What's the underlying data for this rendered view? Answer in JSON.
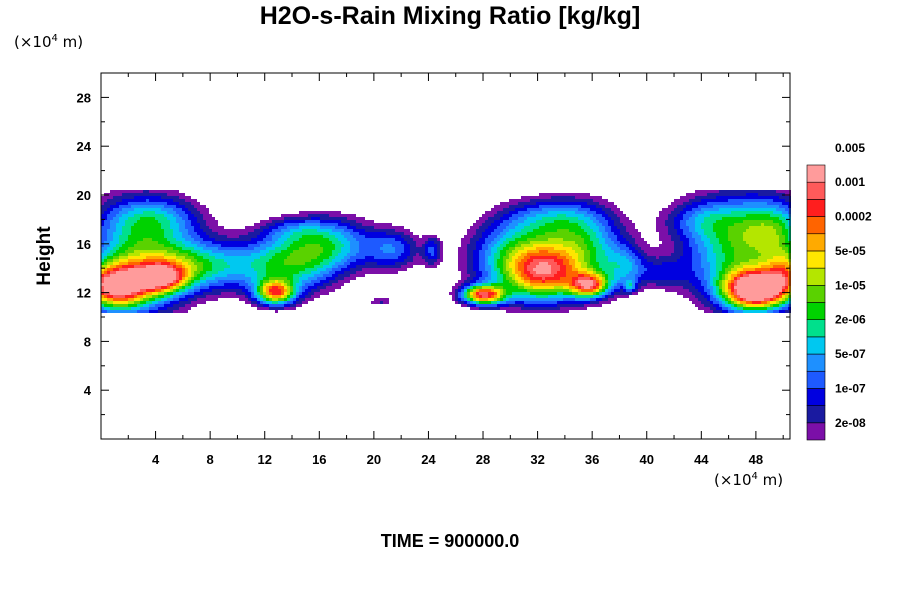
{
  "chart_data": {
    "type": "heatmap",
    "title": "H2O-s-Rain Mixing Ratio [kg/kg]",
    "ylabel": "Height",
    "xlabel": "",
    "x_unit_prefix": "(×10",
    "x_unit_exp": "4",
    "x_unit_suffix": " m)",
    "y_unit_prefix": "(×10",
    "y_unit_exp": "4",
    "y_unit_suffix": " m)",
    "xlim": [
      0,
      50.5
    ],
    "ylim": [
      0,
      30
    ],
    "x_ticks": [
      4,
      8,
      12,
      16,
      20,
      24,
      28,
      32,
      36,
      40,
      44,
      48
    ],
    "y_ticks": [
      4,
      8,
      12,
      16,
      20,
      24,
      28
    ],
    "footer": "TIME = 900000.0",
    "colorbar": {
      "colors": [
        "#7b0fa8",
        "#1a1aa0",
        "#0000e0",
        "#1e5aff",
        "#1e90ff",
        "#00c8f0",
        "#00e08c",
        "#00d200",
        "#5ad200",
        "#b4e600",
        "#ffe600",
        "#ffaa00",
        "#ff6400",
        "#ff1e1e",
        "#ff5a5a",
        "#ff9b9b"
      ],
      "labels": [
        "2e-08",
        "1e-07",
        "5e-07",
        "2e-06",
        "1e-05",
        "5e-05",
        "0.0002",
        "0.001",
        "0.005"
      ]
    },
    "field": {
      "blobs": [
        {
          "x": 3.0,
          "y": 15.0,
          "rx": 4.0,
          "ry": 4.6,
          "a": 1.0
        },
        {
          "x": 7.5,
          "y": 14.2,
          "rx": 3.8,
          "ry": 2.0,
          "a": 0.7
        },
        {
          "x": 1.0,
          "y": 12.5,
          "rx": 2.5,
          "ry": 1.8,
          "a": 1.55
        },
        {
          "x": 4.5,
          "y": 13.2,
          "rx": 1.8,
          "ry": 1.2,
          "a": 1.05
        },
        {
          "x": 4.0,
          "y": 18.2,
          "rx": 3.6,
          "ry": 1.6,
          "a": 0.35
        },
        {
          "x": 13.5,
          "y": 14.2,
          "rx": 3.6,
          "ry": 2.6,
          "a": 0.85
        },
        {
          "x": 12.8,
          "y": 12.0,
          "rx": 1.4,
          "ry": 1.0,
          "a": 1.25
        },
        {
          "x": 16.8,
          "y": 16.0,
          "rx": 3.3,
          "ry": 2.3,
          "a": 0.75
        },
        {
          "x": 21.5,
          "y": 15.5,
          "rx": 2.0,
          "ry": 1.8,
          "a": 0.55
        },
        {
          "x": 14.0,
          "y": 17.2,
          "rx": 2.5,
          "ry": 1.0,
          "a": 0.25
        },
        {
          "x": 24.3,
          "y": 15.4,
          "rx": 0.7,
          "ry": 1.3,
          "a": 0.45
        },
        {
          "x": 20.5,
          "y": 11.3,
          "rx": 0.9,
          "ry": 0.4,
          "a": 0.35
        },
        {
          "x": 30.5,
          "y": 14.8,
          "rx": 3.6,
          "ry": 3.2,
          "a": 0.95
        },
        {
          "x": 28.0,
          "y": 11.8,
          "rx": 1.6,
          "ry": 0.8,
          "a": 1.5
        },
        {
          "x": 32.5,
          "y": 13.5,
          "rx": 2.6,
          "ry": 2.2,
          "a": 1.0
        },
        {
          "x": 35.5,
          "y": 15.5,
          "rx": 3.0,
          "ry": 3.4,
          "a": 0.85
        },
        {
          "x": 35.8,
          "y": 12.6,
          "rx": 1.4,
          "ry": 1.0,
          "a": 1.25
        },
        {
          "x": 33.0,
          "y": 18.2,
          "rx": 3.5,
          "ry": 1.7,
          "a": 0.45
        },
        {
          "x": 38.5,
          "y": 14.0,
          "rx": 1.5,
          "ry": 1.8,
          "a": 0.5
        },
        {
          "x": 41.2,
          "y": 13.6,
          "rx": 1.8,
          "ry": 1.3,
          "a": 0.35
        },
        {
          "x": 38.8,
          "y": 12.5,
          "rx": 0.4,
          "ry": 0.5,
          "a": 0.45
        },
        {
          "x": 46.5,
          "y": 15.5,
          "rx": 4.0,
          "ry": 4.5,
          "a": 0.95
        },
        {
          "x": 48.0,
          "y": 12.2,
          "rx": 2.3,
          "ry": 1.6,
          "a": 1.9
        },
        {
          "x": 49.5,
          "y": 17.2,
          "rx": 2.5,
          "ry": 2.5,
          "a": 0.65
        },
        {
          "x": 44.0,
          "y": 18.0,
          "rx": 3.0,
          "ry": 1.6,
          "a": 0.35
        },
        {
          "x": 50.3,
          "y": 13.5,
          "rx": 1.5,
          "ry": 2.0,
          "a": 0.9
        }
      ],
      "y_floor": 10.3,
      "y_ceiling": 20.5
    }
  }
}
